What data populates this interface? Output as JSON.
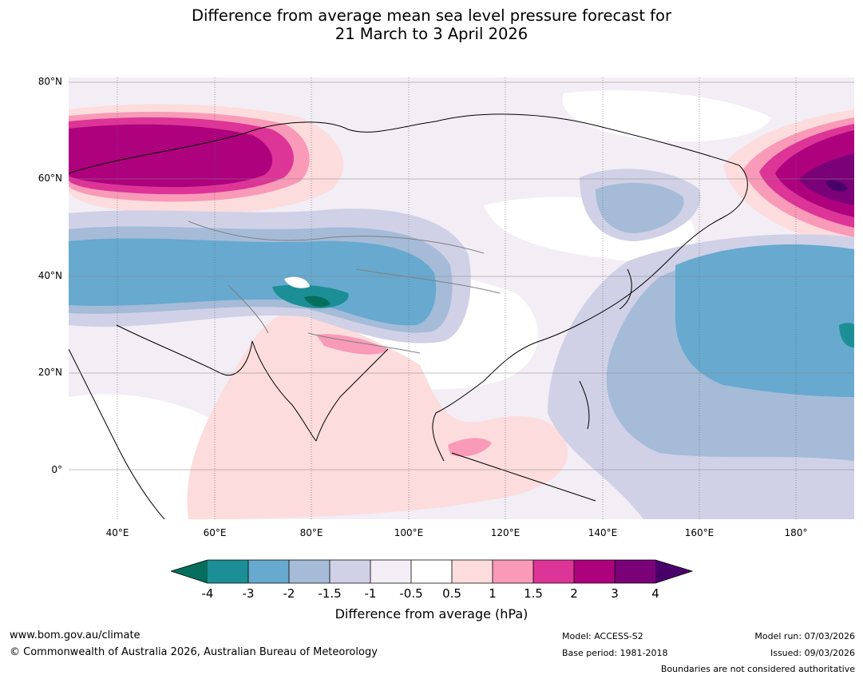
{
  "title_line1": "Difference from average mean sea level pressure forecast for",
  "title_line2": "21 March to 3 April 2026",
  "lat_labels": [
    "80°N",
    "60°N",
    "40°N",
    "20°N",
    "0°"
  ],
  "lon_labels": [
    "40°E",
    "60°E",
    "80°E",
    "100°E",
    "120°E",
    "140°E",
    "160°E",
    "180°"
  ],
  "colorbar": {
    "title": "Difference from average (hPa)",
    "ticks": [
      "-4",
      "-3",
      "-2",
      "-1.5",
      "-1",
      "-0.5",
      "0.5",
      "1",
      "1.5",
      "2",
      "3",
      "4"
    ],
    "colors": {
      "lt_-4": "#056e5c",
      "-4_-3": "#1b8f95",
      "-3_-2": "#67a9cf",
      "-2_-1.5": "#a5bbd8",
      "-1.5_-1": "#d0d1e6",
      "-1_-0.5": "#f3edf5",
      "-0.5_0.5": "#ffffff",
      "0.5_1": "#fcdcdc",
      "1_1.5": "#f89ab8",
      "1.5_2": "#dd3497",
      "2_3": "#ae017e",
      "3_4": "#7a0177",
      "gt_4": "#49006a"
    }
  },
  "footer": {
    "website": "www.bom.gov.au/climate",
    "copyright": "© Commonwealth of Australia 2026, Australian Bureau of Meteorology",
    "model": "Model: ACCESS-S2",
    "base_period": "Base period: 1981-2018",
    "model_run": "Model run: 07/03/2026",
    "issued": "Issued: 09/03/2026",
    "disclaimer": "Boundaries are not considered authoritative"
  }
}
